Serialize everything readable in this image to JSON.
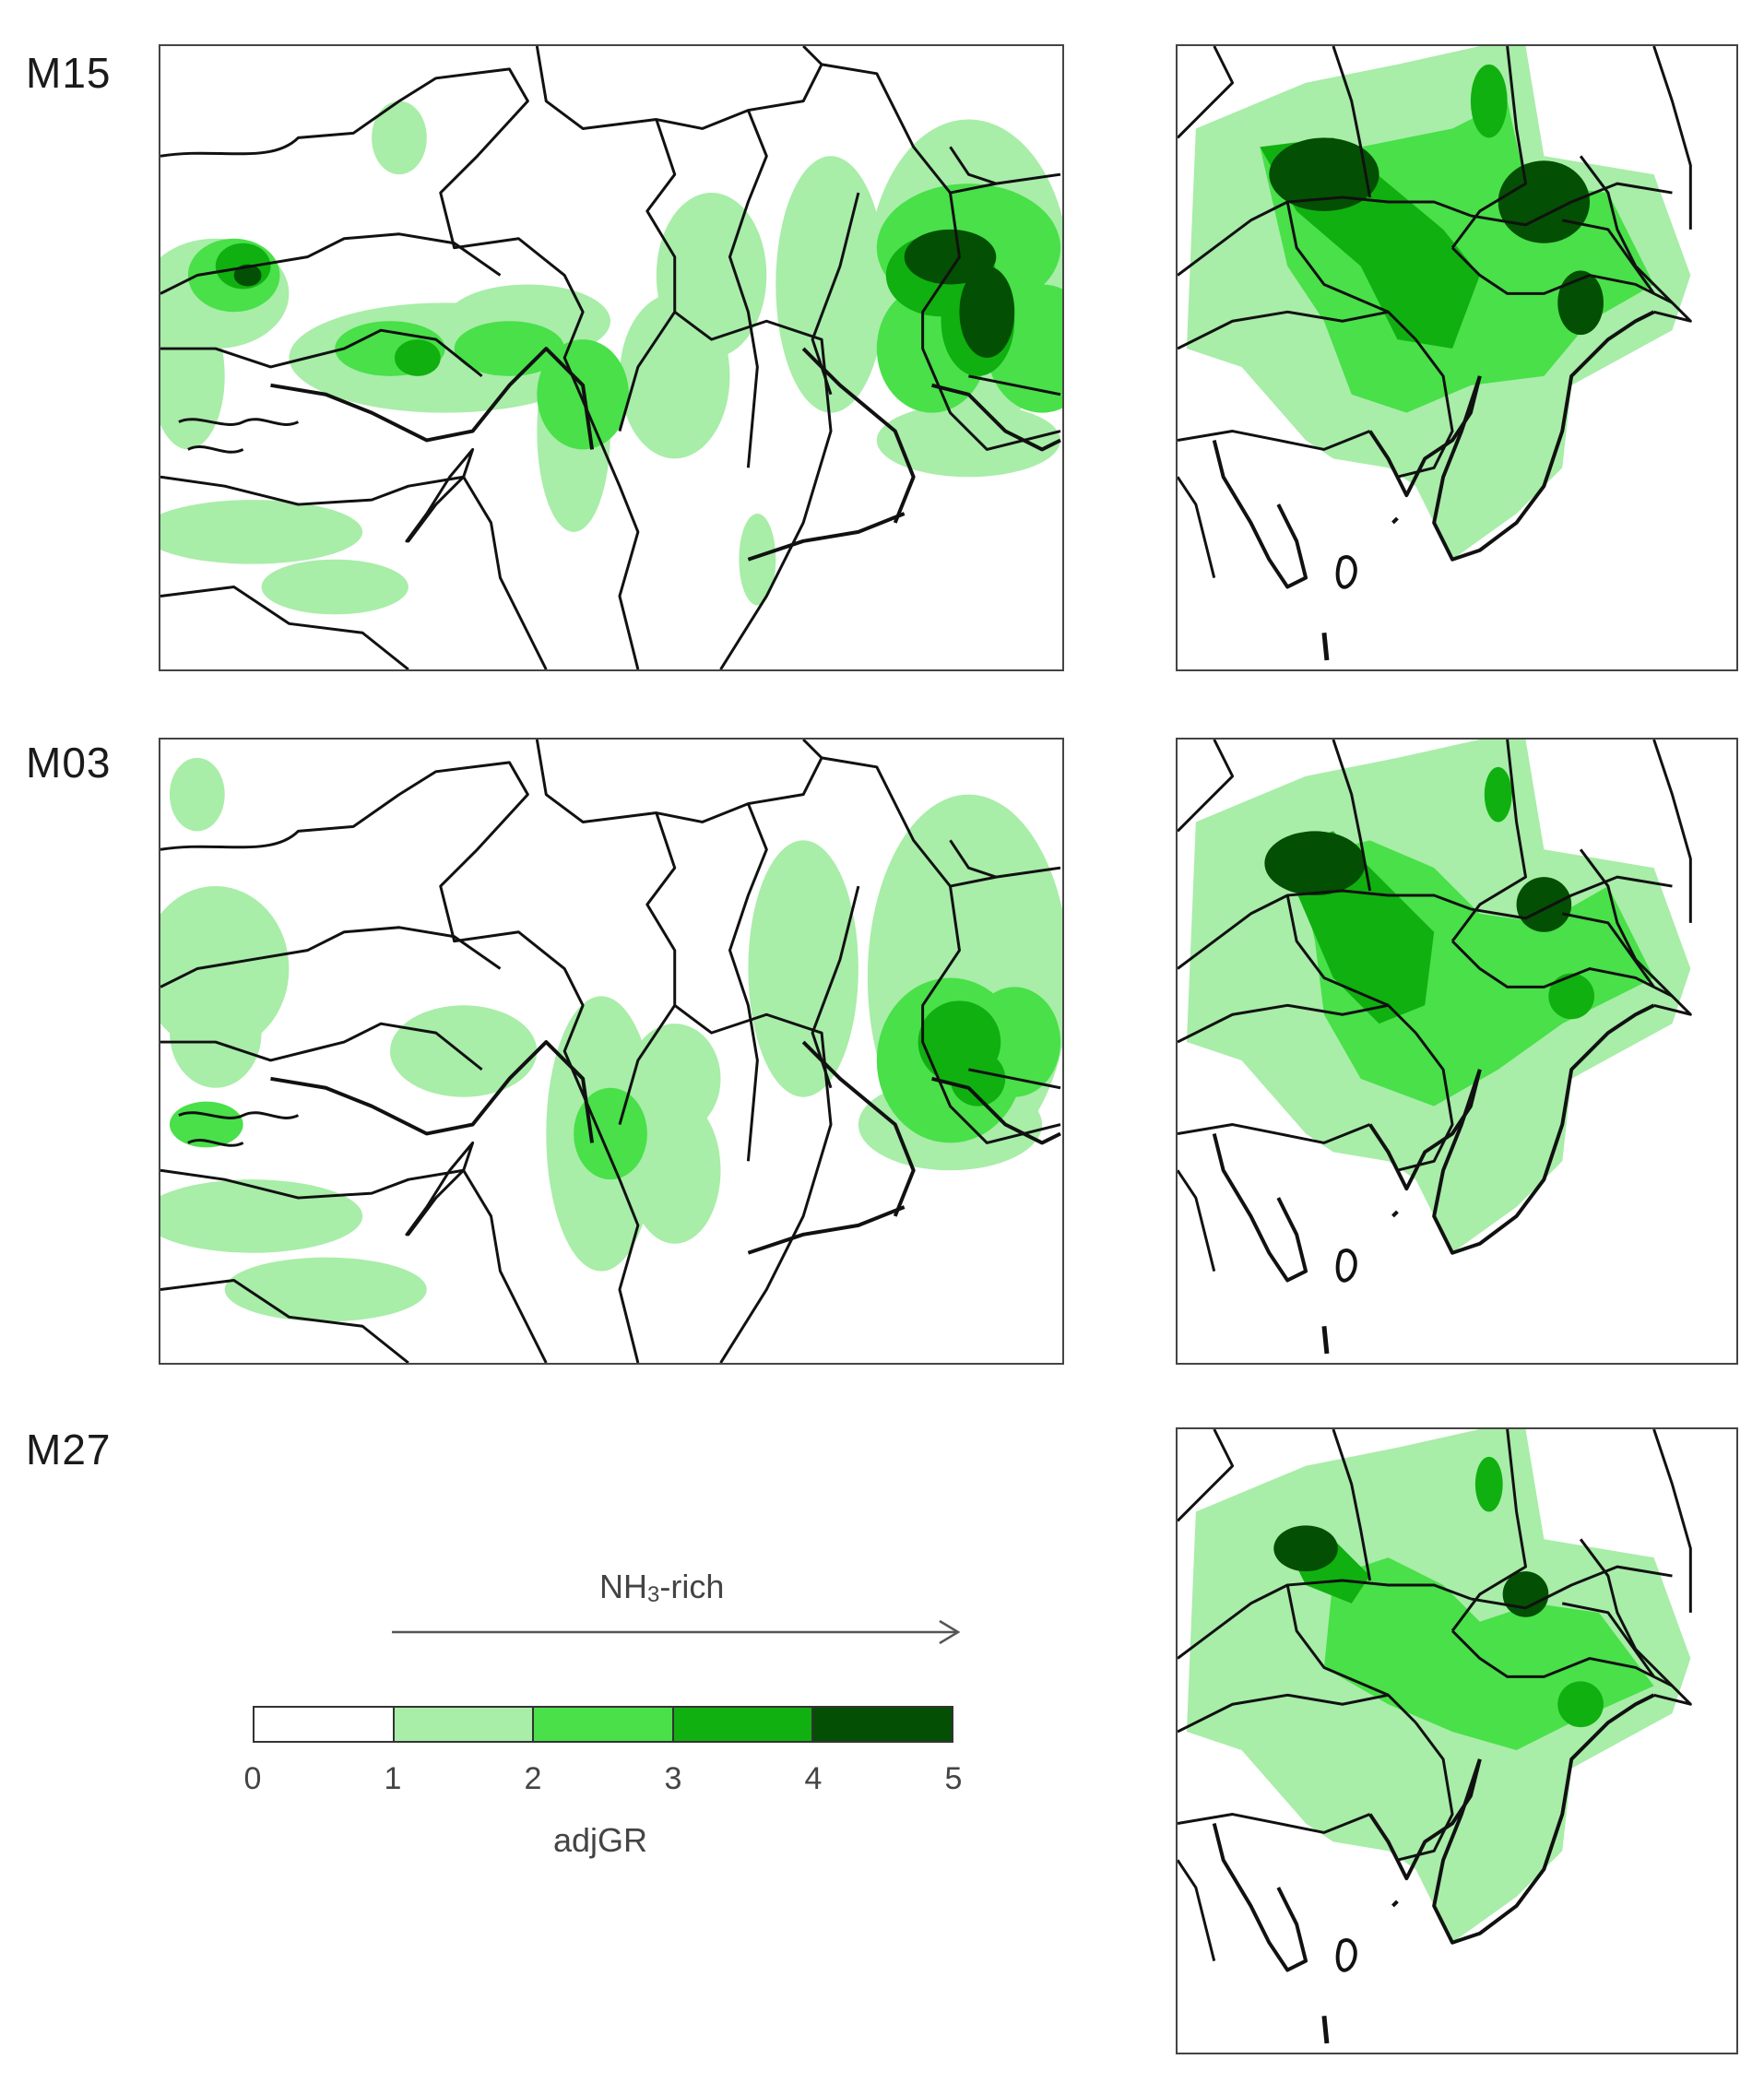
{
  "rows": [
    {
      "label": "M15"
    },
    {
      "label": "M03"
    },
    {
      "label": "M27"
    }
  ],
  "legend": {
    "title_main": "NH",
    "title_sub": "3",
    "title_rest": "-rich",
    "xlabel": "adjGR",
    "ticks": [
      "0",
      "1",
      "2",
      "3",
      "4",
      "5"
    ],
    "colors": [
      "#ffffff",
      "#a8eda8",
      "#49e049",
      "#10b010",
      "#034f03"
    ]
  },
  "palette": {
    "border": "#111111",
    "frame": "#444444",
    "c1": "#a8eda8",
    "c2": "#49e049",
    "c3": "#10b010",
    "c4": "#034f03"
  }
}
